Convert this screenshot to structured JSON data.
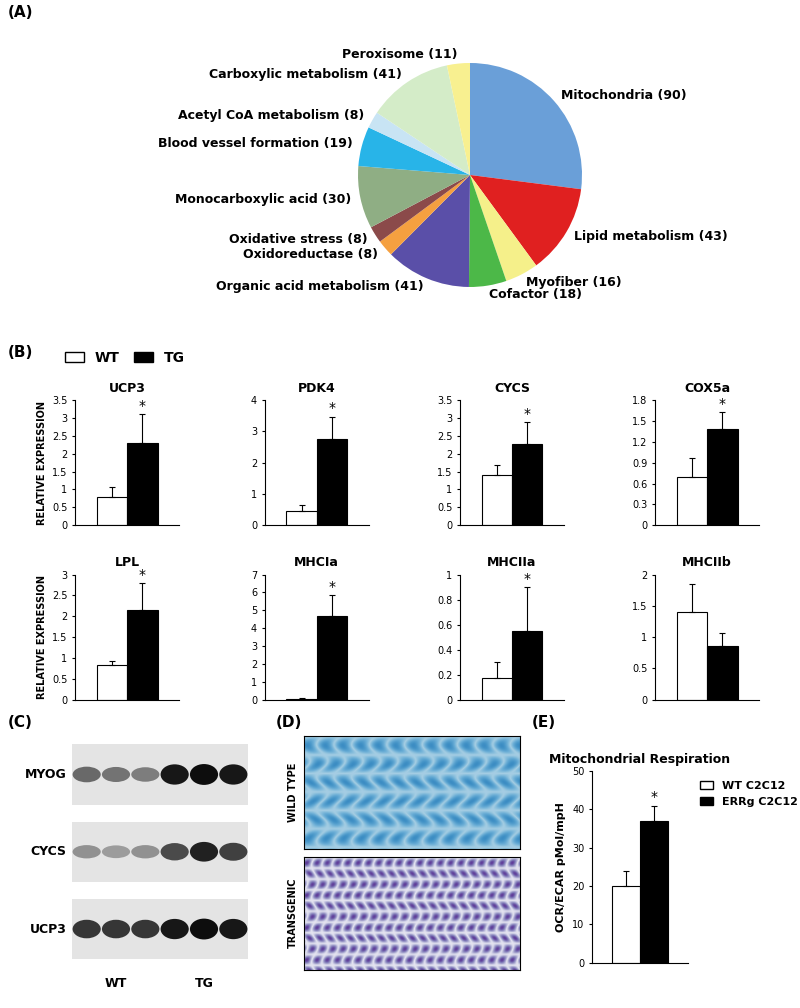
{
  "panels": [
    "(A)",
    "(B)",
    "(C)",
    "(D)",
    "(E)"
  ],
  "chart_data": [
    {
      "type": "pie",
      "categories": [
        "Mitochondria",
        "Lipid metabolism",
        "Myofiber",
        "Cofactor",
        "Organic acid metabolism",
        "Oxidoreductase",
        "Oxidative stress",
        "Monocarboxylic acid",
        "Blood vessel formation",
        "Acetyl CoA metabolism",
        "Carboxylic metabolism",
        "Peroxisome"
      ],
      "values": [
        90,
        43,
        16,
        18,
        41,
        8,
        8,
        30,
        19,
        8,
        41,
        11
      ],
      "value_labels": [
        "Mitochondria (90)",
        "Lipid metabolism (43)",
        "Myofiber (16)",
        "Cofactor (18)",
        "Organic acid metabolism (41)",
        "Oxidoreductase (8)",
        "Oxidative stress (8)",
        "Monocarboxylic acid (30)",
        "Blood vessel formation (19)",
        "Acetyl CoA metabolism (8)",
        "Carboxylic metabolism (41)",
        "Peroxisome (11)"
      ],
      "colors": [
        "#6a9fd8",
        "#e02020",
        "#f5f08a",
        "#4cb848",
        "#5a4fa8",
        "#f5a040",
        "#8b4a4a",
        "#8fae84",
        "#28b4e8",
        "#c8e4f4",
        "#d4ecc8",
        "#f8f090"
      ]
    },
    {
      "type": "bar",
      "title": "UCP3",
      "y_label": "RELATIVE EXPRESSION",
      "categories": [
        null
      ],
      "series": [
        {
          "name": "WT",
          "color": "#ffffff",
          "values": [
            0.78
          ],
          "errors": [
            0.3
          ]
        },
        {
          "name": "TG",
          "color": "#000000",
          "values": [
            2.3
          ],
          "errors": [
            0.8
          ]
        }
      ],
      "ylim": [
        0,
        3.5
      ],
      "yticks": [
        0,
        0.5,
        1,
        1.5,
        2,
        2.5,
        3,
        3.5
      ],
      "tick_labels": "y",
      "annotations": [
        {
          "text": "*",
          "series": "TG"
        }
      ],
      "legend": "upper left"
    },
    {
      "type": "bar",
      "title": "PDK4",
      "categories": [
        null
      ],
      "series": [
        {
          "name": "WT",
          "color": "#ffffff",
          "values": [
            0.45
          ],
          "errors": [
            0.18
          ]
        },
        {
          "name": "TG",
          "color": "#000000",
          "values": [
            2.75
          ],
          "errors": [
            0.72
          ]
        }
      ],
      "ylim": [
        0,
        4
      ],
      "yticks": [
        0,
        1,
        2,
        3,
        4
      ],
      "tick_labels": "y",
      "annotations": [
        {
          "text": "*",
          "series": "TG"
        }
      ]
    },
    {
      "type": "bar",
      "title": "CYCS",
      "categories": [
        null
      ],
      "series": [
        {
          "name": "WT",
          "color": "#ffffff",
          "values": [
            1.4
          ],
          "errors": [
            0.28
          ]
        },
        {
          "name": "TG",
          "color": "#000000",
          "values": [
            2.28
          ],
          "errors": [
            0.6
          ]
        }
      ],
      "ylim": [
        0,
        3.5
      ],
      "yticks": [
        0,
        0.5,
        1,
        1.5,
        2,
        2.5,
        3,
        3.5
      ],
      "tick_labels": "y",
      "annotations": [
        {
          "text": "*",
          "series": "TG"
        }
      ]
    },
    {
      "type": "bar",
      "title": "COX5a",
      "categories": [
        null
      ],
      "series": [
        {
          "name": "WT",
          "color": "#ffffff",
          "values": [
            0.7
          ],
          "errors": [
            0.27
          ]
        },
        {
          "name": "TG",
          "color": "#000000",
          "values": [
            1.38
          ],
          "errors": [
            0.25
          ]
        }
      ],
      "ylim": [
        0,
        1.8
      ],
      "yticks": [
        0,
        0.3,
        0.6,
        0.9,
        1.2,
        1.5,
        1.8
      ],
      "tick_labels": "y",
      "annotations": [
        {
          "text": "*",
          "series": "TG"
        }
      ]
    },
    {
      "type": "bar",
      "title": "LPL",
      "y_label": "RELATIVE EXPRESSION",
      "categories": [
        null
      ],
      "series": [
        {
          "name": "WT",
          "color": "#ffffff",
          "values": [
            0.82
          ],
          "errors": [
            0.1
          ]
        },
        {
          "name": "TG",
          "color": "#000000",
          "values": [
            2.15
          ],
          "errors": [
            0.65
          ]
        }
      ],
      "ylim": [
        0,
        3
      ],
      "yticks": [
        0,
        0.5,
        1,
        1.5,
        2,
        2.5,
        3
      ],
      "tick_labels": "y",
      "annotations": [
        {
          "text": "*",
          "series": "TG"
        }
      ]
    },
    {
      "type": "bar",
      "title": "MHCIa",
      "categories": [
        null
      ],
      "series": [
        {
          "name": "WT",
          "color": "#ffffff",
          "values": [
            0.05
          ],
          "errors": [
            0.03
          ]
        },
        {
          "name": "TG",
          "color": "#000000",
          "values": [
            4.7
          ],
          "errors": [
            1.15
          ]
        }
      ],
      "ylim": [
        0,
        7
      ],
      "yticks": [
        0,
        1,
        2,
        3,
        4,
        5,
        6,
        7
      ],
      "tick_labels": "y",
      "annotations": [
        {
          "text": "*",
          "series": "TG"
        }
      ]
    },
    {
      "type": "bar",
      "title": "MHCIIa",
      "categories": [
        null
      ],
      "series": [
        {
          "name": "WT",
          "color": "#ffffff",
          "values": [
            0.17
          ],
          "errors": [
            0.13
          ]
        },
        {
          "name": "TG",
          "color": "#000000",
          "values": [
            0.55
          ],
          "errors": [
            0.35
          ]
        }
      ],
      "ylim": [
        0,
        1
      ],
      "yticks": [
        0,
        0.2,
        0.4,
        0.6,
        0.8,
        1
      ],
      "tick_labels": "y",
      "annotations": [
        {
          "text": "*",
          "series": "TG"
        }
      ]
    },
    {
      "type": "bar",
      "title": "MHCIIb",
      "categories": [
        null
      ],
      "series": [
        {
          "name": "WT",
          "color": "#ffffff",
          "values": [
            1.4
          ],
          "errors": [
            0.45
          ]
        },
        {
          "name": "TG",
          "color": "#000000",
          "values": [
            0.85
          ],
          "errors": [
            0.22
          ]
        }
      ],
      "ylim": [
        0,
        2
      ],
      "yticks": [
        0,
        0.5,
        1,
        1.5,
        2
      ],
      "tick_labels": "y"
    },
    {
      "type": "bar",
      "title": "Mitochondrial Respiration",
      "y_label": "OCR/ECAR pMol/mpH",
      "categories": [
        null
      ],
      "series": [
        {
          "name": "WT C2C12",
          "color": "#ffffff",
          "values": [
            20
          ],
          "errors": [
            4
          ]
        },
        {
          "name": "ERRg C2C12",
          "color": "#000000",
          "values": [
            37
          ],
          "errors": [
            4
          ]
        }
      ],
      "ylim": [
        0,
        50
      ],
      "yticks": [
        0,
        10,
        20,
        30,
        40,
        50
      ],
      "tick_labels": "y",
      "annotations": [
        {
          "text": "*",
          "series": "ERRg C2C12"
        }
      ],
      "legend": "upper left"
    }
  ],
  "western_blot": {
    "rows": [
      "MYOG",
      "CYCS",
      "UCP3"
    ],
    "groups": [
      "WT",
      "TG"
    ]
  },
  "histology": {
    "images": [
      "WILD TYPE",
      "TRANSGENIC"
    ]
  }
}
